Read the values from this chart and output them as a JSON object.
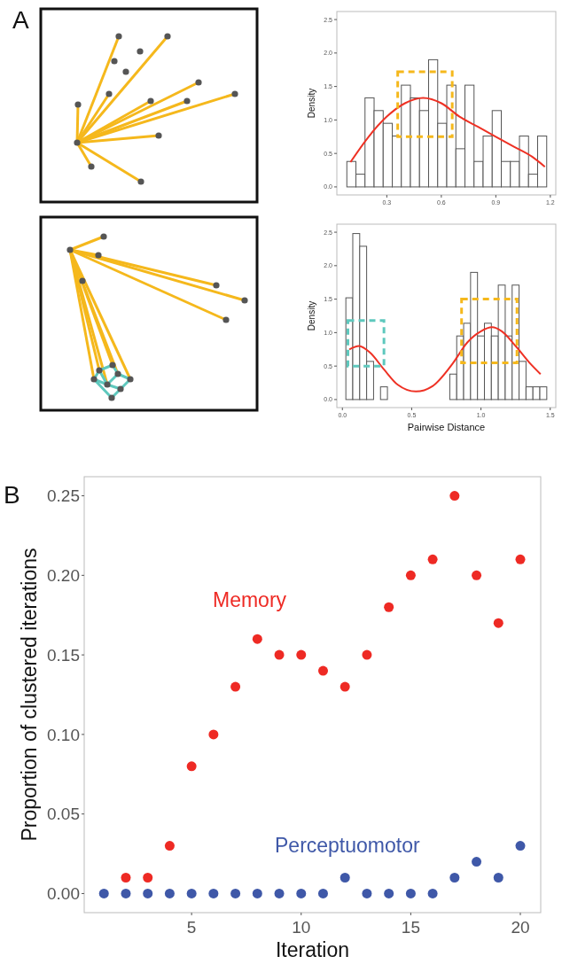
{
  "chart_data": [
    {
      "type": "histogram",
      "annotations": [
        "A"
      ],
      "ylabel": "Density",
      "xlim": [
        0.025,
        1.23
      ],
      "ylim": [
        -0.12,
        2.62
      ],
      "xticks": [
        0.3,
        0.6,
        0.9,
        1.2
      ],
      "yticks": [
        {
          "value": 0,
          "label": "0.0"
        },
        {
          "value": 0.5,
          "label": "0.5"
        },
        {
          "value": 1,
          "label": "1.0"
        },
        {
          "value": 1.5,
          "label": "1.5"
        },
        {
          "value": 2,
          "label": "2.0"
        },
        {
          "value": 2.5,
          "label": "2.5"
        }
      ],
      "grid": false,
      "series": [
        {
          "color": "#ffffff",
          "bins": [
            0.08,
            0.13,
            0.18,
            0.23,
            0.28,
            0.33,
            0.38,
            0.43,
            0.48,
            0.53,
            0.58,
            0.63,
            0.68,
            0.73,
            0.78,
            0.83,
            0.88,
            0.93,
            0.98,
            1.03,
            1.08,
            1.13,
            1.18
          ],
          "values": [
            0.38,
            0.19,
            1.33,
            1.14,
            0.95,
            0.76,
            1.52,
            1.33,
            1.14,
            1.9,
            0.95,
            1.52,
            0.57,
            1.52,
            0.38,
            0.76,
            1.14,
            0.38,
            0.38,
            0.76,
            0.19,
            0.76
          ]
        },
        {
          "type": "line",
          "color": "#ee3124",
          "x": [
            0.1,
            0.2,
            0.3,
            0.4,
            0.5,
            0.6,
            0.7,
            0.8,
            0.9,
            1.0,
            1.1,
            1.17
          ],
          "values": [
            0.37,
            0.75,
            1.05,
            1.25,
            1.33,
            1.25,
            1.05,
            0.9,
            0.75,
            0.6,
            0.45,
            0.3
          ]
        }
      ]
    },
    {
      "type": "histogram",
      "xlabel": "Pairwise Distance",
      "ylabel": "Density",
      "xlim": [
        -0.04,
        1.54
      ],
      "ylim": [
        -0.12,
        2.62
      ],
      "xticks": [
        {
          "value": 0,
          "label": "0.0"
        },
        0.5,
        {
          "value": 1,
          "label": "1.0"
        },
        1.5
      ],
      "yticks": [
        {
          "value": 0,
          "label": "0.0"
        },
        {
          "value": 0.5,
          "label": "0.5"
        },
        {
          "value": 1,
          "label": "1.0"
        },
        {
          "value": 1.5,
          "label": "1.5"
        },
        {
          "value": 2,
          "label": "2.0"
        },
        {
          "value": 2.5,
          "label": "2.5"
        }
      ],
      "grid": false,
      "series": [
        {
          "color": "#ffffff",
          "bins": [
            0.025,
            0.075,
            0.125,
            0.175,
            0.225,
            0.275,
            0.325,
            0.375,
            0.425,
            0.475,
            0.525,
            0.575,
            0.625,
            0.675,
            0.725,
            0.775,
            0.825,
            0.875,
            0.925,
            0.975,
            1.025,
            1.075,
            1.125,
            1.175,
            1.225,
            1.275,
            1.325,
            1.375,
            1.425,
            1.475
          ],
          "values": [
            1.52,
            2.48,
            2.29,
            0.57,
            0,
            0.19,
            0,
            0,
            0,
            0,
            0,
            0,
            0,
            0,
            0,
            0.38,
            0.95,
            1.14,
            1.9,
            0.95,
            1.14,
            0.95,
            1.71,
            0.95,
            1.71,
            0.57,
            0.19,
            0.19,
            0.19
          ]
        },
        {
          "type": "line",
          "color": "#ee3124",
          "x": [
            0.05,
            0.12,
            0.2,
            0.3,
            0.4,
            0.53,
            0.65,
            0.8,
            0.9,
            1.0,
            1.08,
            1.15,
            1.25,
            1.35,
            1.43
          ],
          "values": [
            0.75,
            0.8,
            0.7,
            0.45,
            0.22,
            0.12,
            0.2,
            0.55,
            0.85,
            1.02,
            1.08,
            1.02,
            0.8,
            0.55,
            0.38
          ]
        }
      ]
    },
    {
      "type": "scatter",
      "annotations": [
        "B"
      ],
      "xlabel": "Iteration",
      "ylabel": "Proportion of clustered iterations",
      "xlim": [
        0.1,
        20.93
      ],
      "ylim": [
        -0.012,
        0.262
      ],
      "xticks": [
        5,
        10,
        15,
        20
      ],
      "yticks": [
        {
          "value": 0,
          "label": "0.00"
        },
        {
          "value": 0.05,
          "label": "0.05"
        },
        {
          "value": 0.1,
          "label": "0.10"
        },
        {
          "value": 0.15,
          "label": "0.15"
        },
        {
          "value": 0.2,
          "label": "0.20"
        },
        {
          "value": 0.25,
          "label": "0.25"
        }
      ],
      "grid": false,
      "marker": "circle",
      "series": [
        {
          "name": "Memory",
          "color": "#ee2a24",
          "x": [
            2,
            3,
            4,
            5,
            6,
            7,
            8,
            9,
            10,
            11,
            12,
            13,
            14,
            15,
            16,
            17,
            18,
            19,
            20
          ],
          "values": [
            0.01,
            0.01,
            0.03,
            0.08,
            0.1,
            0.13,
            0.16,
            0.15,
            0.15,
            0.14,
            0.13,
            0.15,
            0.18,
            0.2,
            0.21,
            0.25,
            0.2,
            0.17,
            0.21
          ]
        },
        {
          "name": "Perceptuomotor",
          "color": "#3f58a8",
          "x": [
            1,
            2,
            3,
            4,
            5,
            6,
            7,
            8,
            9,
            10,
            11,
            12,
            13,
            14,
            15,
            16,
            17,
            18,
            19,
            20
          ],
          "values": [
            0,
            0,
            0,
            0,
            0,
            0,
            0,
            0,
            0,
            0,
            0,
            0.01,
            0,
            0,
            0,
            0,
            0.01,
            0.02,
            0.01,
            0.03
          ]
        }
      ]
    }
  ]
}
